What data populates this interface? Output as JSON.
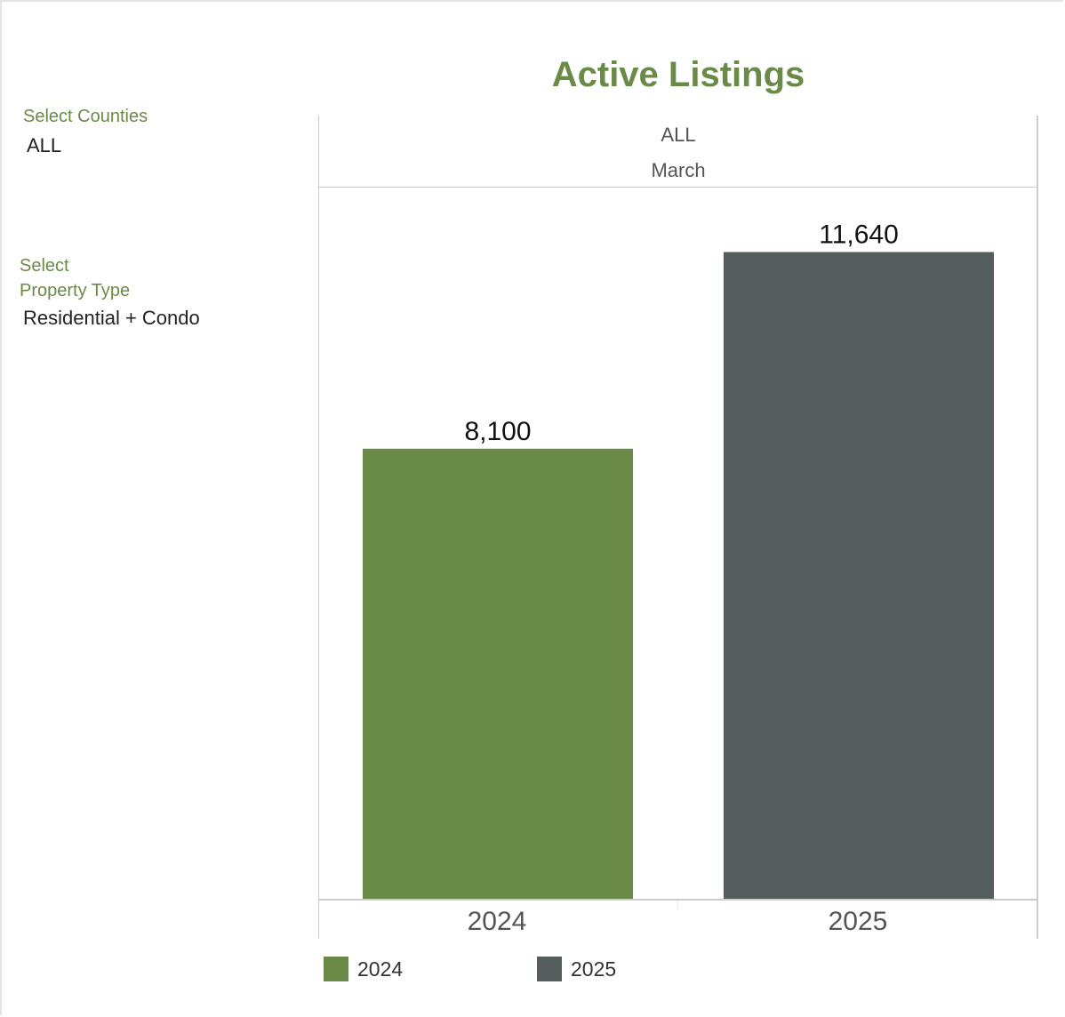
{
  "filters": {
    "counties": {
      "label": "Select Counties",
      "value": "ALL"
    },
    "property_type": {
      "label_line1": "Select",
      "label_line2": "Property Type",
      "value": "Residential + Condo"
    }
  },
  "chart_data": {
    "type": "bar",
    "title": "Active Listings",
    "header": [
      "ALL",
      "March"
    ],
    "categories": [
      "2024",
      "2025"
    ],
    "values": [
      8100,
      11640
    ],
    "data_labels": [
      "8,100",
      "11,640"
    ],
    "colors": [
      "#6a8a48",
      "#545e5c"
    ],
    "ylim": [
      0,
      12800
    ],
    "grid": false,
    "legend": {
      "position": "bottom-left",
      "entries": [
        "2024",
        "2025"
      ]
    }
  }
}
